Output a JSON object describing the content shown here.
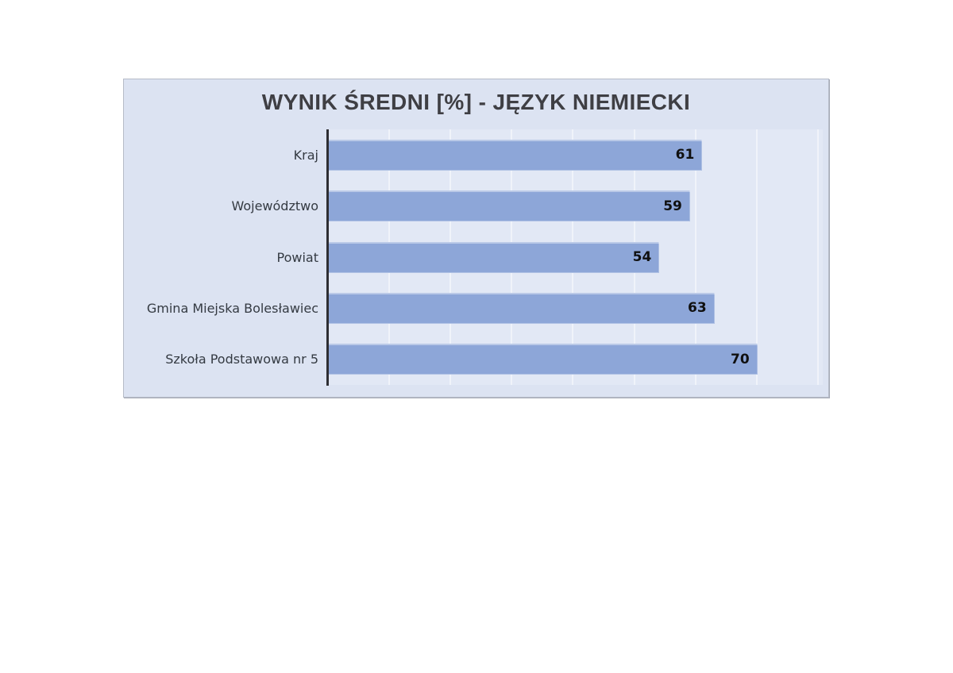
{
  "chart": {
    "title": "WYNIK ŚREDNI [%] - JĘZYK NIEMIECKI"
  },
  "chart_data": {
    "type": "bar",
    "orientation": "horizontal",
    "title": "WYNIK ŚREDNI [%] - JĘZYK NIEMIECKI",
    "categories": [
      "Kraj",
      "Województwo",
      "Powiat",
      "Gmina Miejska Bolesławiec",
      "Szkoła Podstawowa nr 5"
    ],
    "values": [
      61,
      59,
      54,
      63,
      70
    ],
    "xlabel": "",
    "ylabel": "",
    "xlim": [
      0,
      80
    ],
    "gridline_step": 10,
    "grid": true,
    "data_labels": true,
    "legend": false
  },
  "colors": {
    "bar": "#8da6d8",
    "chart_background": "#dce3f2",
    "plot_background": "#e2e8f5",
    "gridline": "#f0f3fa",
    "axis_line": "#2e2e33",
    "title_text": "#3f3f44",
    "category_text": "#343a42",
    "value_text": "#101010",
    "border": "#b6bbc7",
    "page_background": "#ffffff"
  }
}
